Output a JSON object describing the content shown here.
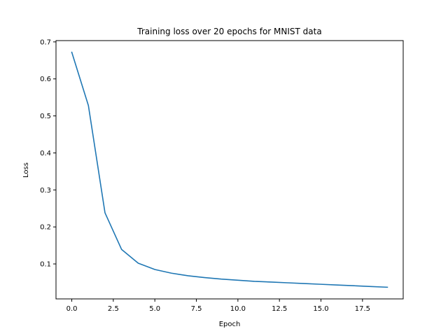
{
  "chart_data": {
    "type": "line",
    "title": "Training loss over 20 epochs for MNIST data",
    "xlabel": "Epoch",
    "ylabel": "Loss",
    "xlim": [
      -0.95,
      19.95
    ],
    "ylim": [
      0.0055,
      0.7035
    ],
    "x_ticks": [
      0.0,
      2.5,
      5.0,
      7.5,
      10.0,
      12.5,
      15.0,
      17.5
    ],
    "x_tick_labels": [
      "0.0",
      "2.5",
      "5.0",
      "7.5",
      "10.0",
      "12.5",
      "15.0",
      "17.5"
    ],
    "y_ticks": [
      0.1,
      0.2,
      0.3,
      0.4,
      0.5,
      0.6,
      0.7
    ],
    "y_tick_labels": [
      "0.1",
      "0.2",
      "0.3",
      "0.4",
      "0.5",
      "0.6",
      "0.7"
    ],
    "grid": false,
    "series": [
      {
        "color": "#1f77b4",
        "x": [
          0,
          1,
          2,
          3,
          4,
          5,
          6,
          7,
          8,
          9,
          10,
          11,
          12,
          13,
          14,
          15,
          16,
          17,
          18,
          19
        ],
        "y": [
          0.672,
          0.528,
          0.238,
          0.139,
          0.102,
          0.085,
          0.075,
          0.068,
          0.063,
          0.059,
          0.056,
          0.053,
          0.051,
          0.049,
          0.047,
          0.045,
          0.043,
          0.041,
          0.039,
          0.037
        ]
      }
    ]
  }
}
